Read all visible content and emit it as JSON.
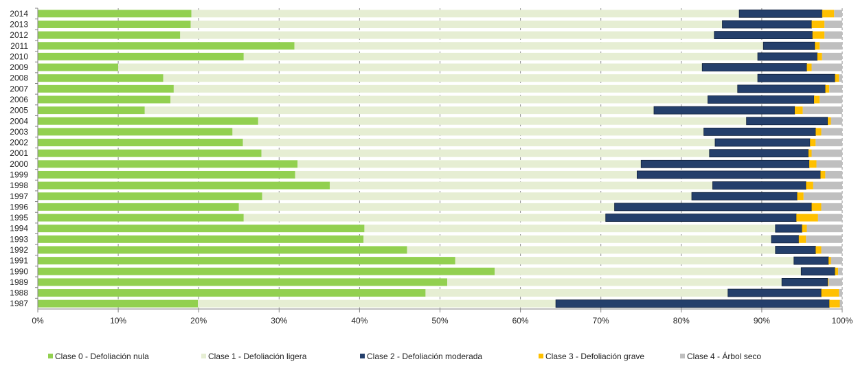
{
  "chart_data": {
    "type": "bar",
    "orientation": "horizontal",
    "stacked": "percent",
    "title": "",
    "xlabel": "",
    "ylabel": "",
    "xlim": [
      0,
      100
    ],
    "x_ticks": [
      "0%",
      "10%",
      "20%",
      "30%",
      "40%",
      "50%",
      "60%",
      "70%",
      "80%",
      "90%",
      "100%"
    ],
    "grid": "vertical dashed",
    "legend_position": "bottom",
    "categories": [
      "2014",
      "2013",
      "2012",
      "2011",
      "2010",
      "2009",
      "2008",
      "2007",
      "2006",
      "2005",
      "2004",
      "2003",
      "2002",
      "2001",
      "2000",
      "1999",
      "1998",
      "1997",
      "1996",
      "1995",
      "1994",
      "1993",
      "1992",
      "1991",
      "1990",
      "1989",
      "1988",
      "1987"
    ],
    "series": [
      {
        "name": "Clase 0 - Defoliación nula",
        "color": "#92d050",
        "values": [
          19.1,
          19.0,
          17.7,
          31.9,
          25.6,
          10.0,
          15.6,
          16.9,
          16.5,
          13.3,
          27.4,
          24.2,
          25.5,
          27.8,
          32.3,
          32.0,
          36.3,
          27.9,
          25.0,
          25.6,
          40.6,
          40.5,
          45.9,
          51.9,
          56.8,
          50.9,
          48.2,
          19.9
        ]
      },
      {
        "name": "Clase 1 - Defoliación ligera",
        "color": "#e6eed3",
        "values": [
          68.1,
          66.1,
          66.4,
          58.3,
          63.9,
          72.6,
          73.9,
          70.1,
          66.8,
          63.3,
          60.7,
          58.6,
          58.7,
          55.7,
          42.7,
          42.5,
          47.6,
          53.4,
          46.7,
          45.0,
          51.1,
          50.7,
          45.8,
          42.1,
          38.1,
          41.6,
          37.6,
          44.5
        ]
      },
      {
        "name": "Clase 2 - Defoliación moderada",
        "color": "#243f6b",
        "values": [
          10.3,
          11.1,
          12.2,
          6.4,
          7.4,
          13.0,
          9.6,
          10.9,
          13.2,
          17.5,
          10.1,
          13.9,
          11.8,
          12.3,
          20.9,
          22.8,
          11.6,
          13.1,
          24.5,
          23.7,
          3.3,
          3.4,
          5.0,
          4.3,
          4.2,
          5.7,
          11.6,
          34.0
        ]
      },
      {
        "name": "Clase 3 - Defoliación grave",
        "color": "#ffc000",
        "values": [
          1.5,
          1.6,
          1.5,
          0.6,
          0.6,
          0.6,
          0.5,
          0.5,
          0.7,
          1.0,
          0.4,
          0.7,
          0.7,
          0.4,
          0.9,
          0.6,
          0.9,
          0.8,
          1.2,
          2.7,
          0.6,
          0.9,
          0.7,
          0.3,
          0.4,
          0.1,
          2.2,
          1.3
        ]
      },
      {
        "name": "Clase 4 - Árbol seco",
        "color": "#bfbfbf",
        "values": [
          1.0,
          2.2,
          2.2,
          2.8,
          2.5,
          3.8,
          0.4,
          1.6,
          2.8,
          4.9,
          1.4,
          2.6,
          3.3,
          3.8,
          3.2,
          2.1,
          3.6,
          4.8,
          2.6,
          3.0,
          4.4,
          4.5,
          2.6,
          1.4,
          0.5,
          1.7,
          0.4,
          0.3
        ]
      }
    ]
  }
}
